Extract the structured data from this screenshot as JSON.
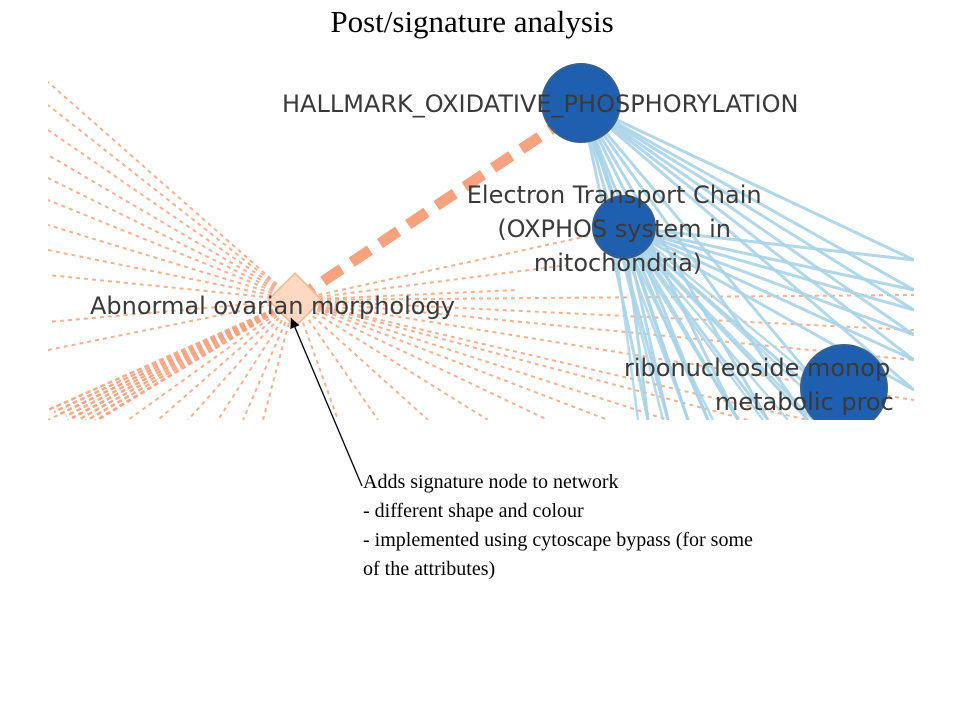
{
  "slide": {
    "title": "Post/signature analysis"
  },
  "network": {
    "nodes": {
      "hallmark": {
        "label": "HALLMARK_OXIDATIVE_PHOSPHORYLATION",
        "color": "#1f5fb0"
      },
      "etc": {
        "label_lines": [
          "Electron Transport Chain",
          "(OXPHOS system in",
          "mitochondria)"
        ],
        "color": "#1f5fb0"
      },
      "ribo": {
        "label_lines": [
          "ribonucleoside monop",
          "metabolic proc"
        ],
        "color": "#1f5fb0"
      },
      "signature": {
        "label": "Abnormal ovarian morphology",
        "color": "#fdd9c2",
        "shape": "diamond"
      }
    },
    "colors": {
      "gene_set_edge": "#a9d3e8",
      "signature_edge": "#f7a27e",
      "node_border": "#3a5f8a"
    }
  },
  "callout": {
    "lines": [
      "Adds signature node to network",
      "- different shape and colour",
      "- implemented using cytoscape bypass (for some",
      "of the attributes)"
    ]
  }
}
